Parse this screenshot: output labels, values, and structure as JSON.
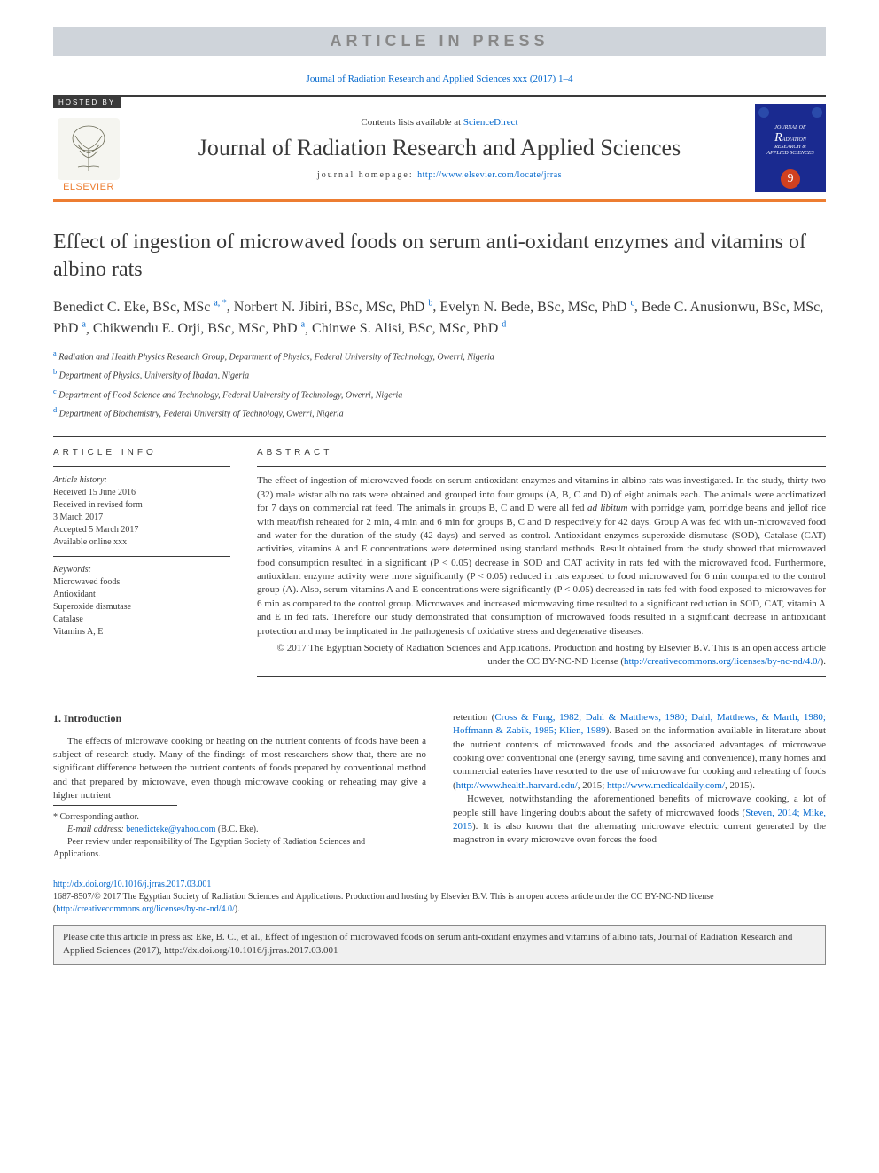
{
  "banner": "ARTICLE IN PRESS",
  "journal_ref": "Journal of Radiation Research and Applied Sciences xxx (2017) 1–4",
  "header": {
    "hosted_by": "HOSTED BY",
    "contents_prefix": "Contents lists available at ",
    "contents_link": "ScienceDirect",
    "journal_name": "Journal of Radiation Research and Applied Sciences",
    "homepage_prefix": "journal homepage: ",
    "homepage_url": "http://www.elsevier.com/locate/jrras",
    "elsevier": "ELSEVIER",
    "cover": {
      "journal_small": "JOURNAL OF",
      "r": "R",
      "rest1": "ADIATION",
      "rest2": "RESEARCH &",
      "rest3": "APPLIED SCIENCES",
      "nine": "9"
    }
  },
  "title": "Effect of ingestion of microwaved foods on serum anti-oxidant enzymes and vitamins of albino rats",
  "authors": [
    {
      "name": "Benedict C. Eke, BSc, MSc",
      "sup": "a, *"
    },
    {
      "name": "Norbert N. Jibiri, BSc, MSc, PhD",
      "sup": "b"
    },
    {
      "name": "Evelyn N. Bede, BSc, MSc, PhD",
      "sup": "c"
    },
    {
      "name": "Bede C. Anusionwu, BSc, MSc, PhD",
      "sup": "a"
    },
    {
      "name": "Chikwendu E. Orji, BSc, MSc, PhD",
      "sup": "a"
    },
    {
      "name": "Chinwe S. Alisi, BSc, MSc, PhD",
      "sup": "d"
    }
  ],
  "affiliations": [
    {
      "sup": "a",
      "text": "Radiation and Health Physics Research Group, Department of Physics, Federal University of Technology, Owerri, Nigeria"
    },
    {
      "sup": "b",
      "text": "Department of Physics, University of Ibadan, Nigeria"
    },
    {
      "sup": "c",
      "text": "Department of Food Science and Technology, Federal University of Technology, Owerri, Nigeria"
    },
    {
      "sup": "d",
      "text": "Department of Biochemistry, Federal University of Technology, Owerri, Nigeria"
    }
  ],
  "article_info": {
    "head": "ARTICLE INFO",
    "history_label": "Article history:",
    "history": [
      "Received 15 June 2016",
      "Received in revised form",
      "3 March 2017",
      "Accepted 5 March 2017",
      "Available online xxx"
    ],
    "keywords_label": "Keywords:",
    "keywords": [
      "Microwaved foods",
      "Antioxidant",
      "Superoxide dismutase",
      "Catalase",
      "Vitamins A, E"
    ]
  },
  "abstract": {
    "head": "ABSTRACT",
    "text_1": "The effect of ingestion of microwaved foods on serum antioxidant enzymes and vitamins in albino rats was investigated. In the study, thirty two (32) male wistar albino rats were obtained and grouped into four groups (A, B, C and D) of eight animals each. The animals were acclimatized for 7 days on commercial rat feed. The animals in groups B, C and D were all fed ",
    "ad_libitum": "ad libitum",
    "text_2": " with porridge yam, porridge beans and jellof rice with meat/fish reheated for 2 min, 4 min and 6 min for groups B, C and D respectively for 42 days. Group A was fed with un-microwaved food and water for the duration of the study (42 days) and served as control. Antioxidant enzymes superoxide dismutase (SOD), Catalase (CAT) activities, vitamins A and E concentrations were determined using standard methods. Result obtained from the study showed that microwaved food consumption resulted in a significant (P < 0.05) decrease in SOD and CAT activity in rats fed with the microwaved food. Furthermore, antioxidant enzyme activity were more significantly (P < 0.05) reduced in rats exposed to food microwaved for 6 min compared to the control group (A). Also, serum vitamins A and E concentrations were significantly (P < 0.05) decreased in rats fed with food exposed to microwaves for 6 min as compared to the control group. Microwaves and increased microwaving time resulted to a significant reduction in SOD, CAT, vitamin A and E in fed rats. Therefore our study demonstrated that consumption of microwaved foods resulted in a significant decrease in antioxidant protection and may be implicated in the pathogenesis of oxidative stress and degenerative diseases.",
    "copyright": "© 2017 The Egyptian Society of Radiation Sciences and Applications. Production and hosting by Elsevier B.V. This is an open access article under the CC BY-NC-ND license (",
    "cc_url": "http://creativecommons.org/licenses/by-nc-nd/4.0/",
    "copyright_end": ")."
  },
  "intro": {
    "head": "1. Introduction",
    "p1": "The effects of microwave cooking or heating on the nutrient contents of foods have been a subject of research study. Many of the findings of most researchers show that, there are no significant difference between the nutrient contents of foods prepared by conventional method and that prepared by microwave, even though microwave cooking or reheating may give a higher nutrient",
    "p2_a": "retention (",
    "p2_cite": "Cross & Fung, 1982; Dahl & Matthews, 1980; Dahl, Matthews, & Marth, 1980; Hoffmann & Zabik, 1985; Klien, 1989",
    "p2_b": "). Based on the information available in literature about the nutrient contents of microwaved foods and the associated advantages of microwave cooking over conventional one (energy saving, time saving and convenience), many homes and commercial eateries have resorted to the use of microwave for cooking and reheating of foods (",
    "p2_link1": "http://www.health.harvard.edu/",
    "p2_c": ", 2015; ",
    "p2_link2": "http://www.medicaldaily.com/",
    "p2_d": ", 2015).",
    "p3_a": "However, notwithstanding the aforementioned benefits of microwave cooking, a lot of people still have lingering doubts about the safety of microwaved foods (",
    "p3_cite": "Steven, 2014; Mike, 2015",
    "p3_b": "). It is also known that the alternating microwave electric current generated by the magnetron in every microwave oven forces the food"
  },
  "footnotes": {
    "corr": "* Corresponding author.",
    "email_label": "E-mail address:",
    "email": "benedicteke@yahoo.com",
    "email_name": "(B.C. Eke).",
    "peer": "Peer review under responsibility of The Egyptian Society of Radiation Sciences and Applications."
  },
  "doi": {
    "url": "http://dx.doi.org/10.1016/j.jrras.2017.03.001",
    "issn_a": "1687-8507/© 2017 The Egyptian Society of Radiation Sciences and Applications. Production and hosting by Elsevier B.V. This is an open access article under the CC BY-NC-ND license (",
    "cc_url": "http://creativecommons.org/licenses/by-nc-nd/4.0/",
    "issn_b": ")."
  },
  "cite_box": "Please cite this article in press as: Eke, B. C., et al., Effect of ingestion of microwaved foods on serum anti-oxidant enzymes and vitamins of albino rats, Journal of Radiation Research and Applied Sciences (2017), http://dx.doi.org/10.1016/j.jrras.2017.03.001",
  "colors": {
    "accent_orange": "#ed7d31",
    "link_blue": "#0066cc",
    "text": "#3a3a3a",
    "banner_bg": "#cfd4da",
    "banner_fg": "#888888",
    "cover_bg": "#1a2a90",
    "citebox_bg": "#f0f0f0"
  },
  "typography": {
    "title_fontsize": 24,
    "author_fontsize": 16,
    "journal_name_fontsize": 26,
    "body_fontsize": 11,
    "info_fontsize": 10
  }
}
